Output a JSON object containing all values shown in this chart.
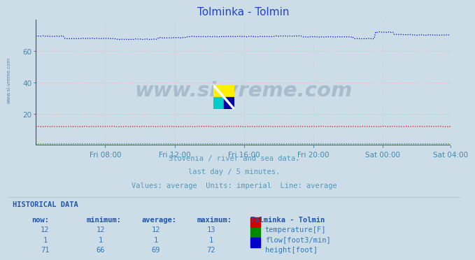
{
  "title": "Tolminka - Tolmin",
  "background_color": "#ccdde8",
  "plot_bg_color": "#ccdde8",
  "fig_bg_color": "#ccdde8",
  "subtitle_lines": [
    "Slovenia / river and sea data.",
    "last day / 5 minutes.",
    "Values: average  Units: imperial  Line: average"
  ],
  "historical_label": "HISTORICAL DATA",
  "table_headers": [
    "now:",
    "minimum:",
    "average:",
    "maximum:",
    "Tolminka - Tolmin"
  ],
  "table_data": [
    [
      12,
      12,
      12,
      13,
      "temperature[F]",
      "#cc0000"
    ],
    [
      1,
      1,
      1,
      1,
      "flow[foot3/min]",
      "#008800"
    ],
    [
      71,
      66,
      69,
      72,
      "height[foot]",
      "#0000cc"
    ]
  ],
  "xlabel_ticks": [
    "Fri 08:00",
    "Fri 12:00",
    "Fri 16:00",
    "Fri 20:00",
    "Sat 00:00",
    "Sat 04:00"
  ],
  "xtick_positions": [
    48,
    96,
    144,
    192,
    240,
    287
  ],
  "xlim": [
    0,
    287
  ],
  "ylim": [
    0,
    80
  ],
  "yticks": [
    20,
    40,
    60
  ],
  "grid_color_h": "#ffaaaa",
  "grid_color_v": "#cccccc",
  "watermark": "www.si-vreme.com",
  "watermark_color": "#aabbcc",
  "temp_color": "#dd0000",
  "flow_color": "#00aa00",
  "height_color": "#0000cc",
  "axis_color": "#cc0000",
  "tick_color": "#4488aa",
  "text_color": "#5599bb"
}
